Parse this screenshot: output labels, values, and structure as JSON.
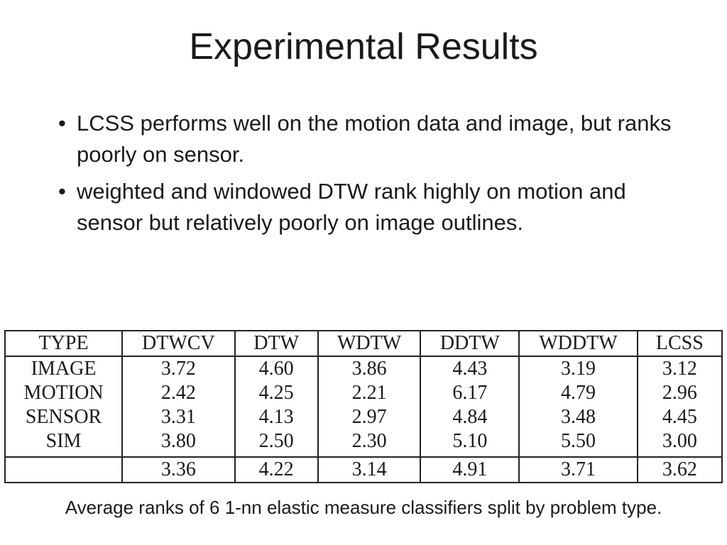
{
  "title": "Experimental Results",
  "bullets": [
    "LCSS performs well on the motion data and image, but ranks poorly on sensor.",
    "weighted and windowed DTW rank highly on motion and sensor but relatively poorly on image outlines."
  ],
  "table": {
    "headers": [
      "TYPE",
      "DTWCV",
      "DTW",
      "WDTW",
      "DDTW",
      "WDDTW",
      "LCSS"
    ],
    "rows": [
      [
        "IMAGE",
        "3.72",
        "4.60",
        "3.86",
        "4.43",
        "3.19",
        "3.12"
      ],
      [
        "MOTION",
        "2.42",
        "4.25",
        "2.21",
        "6.17",
        "4.79",
        "2.96"
      ],
      [
        "SENSOR",
        "3.31",
        "4.13",
        "2.97",
        "4.84",
        "3.48",
        "4.45"
      ],
      [
        "SIM",
        "3.80",
        "2.50",
        "2.30",
        "5.10",
        "5.50",
        "3.00"
      ]
    ],
    "averages": [
      "",
      "3.36",
      "4.22",
      "3.14",
      "4.91",
      "3.71",
      "3.62"
    ]
  },
  "caption": "Average ranks of 6 1-nn elastic measure classifiers split by problem type."
}
